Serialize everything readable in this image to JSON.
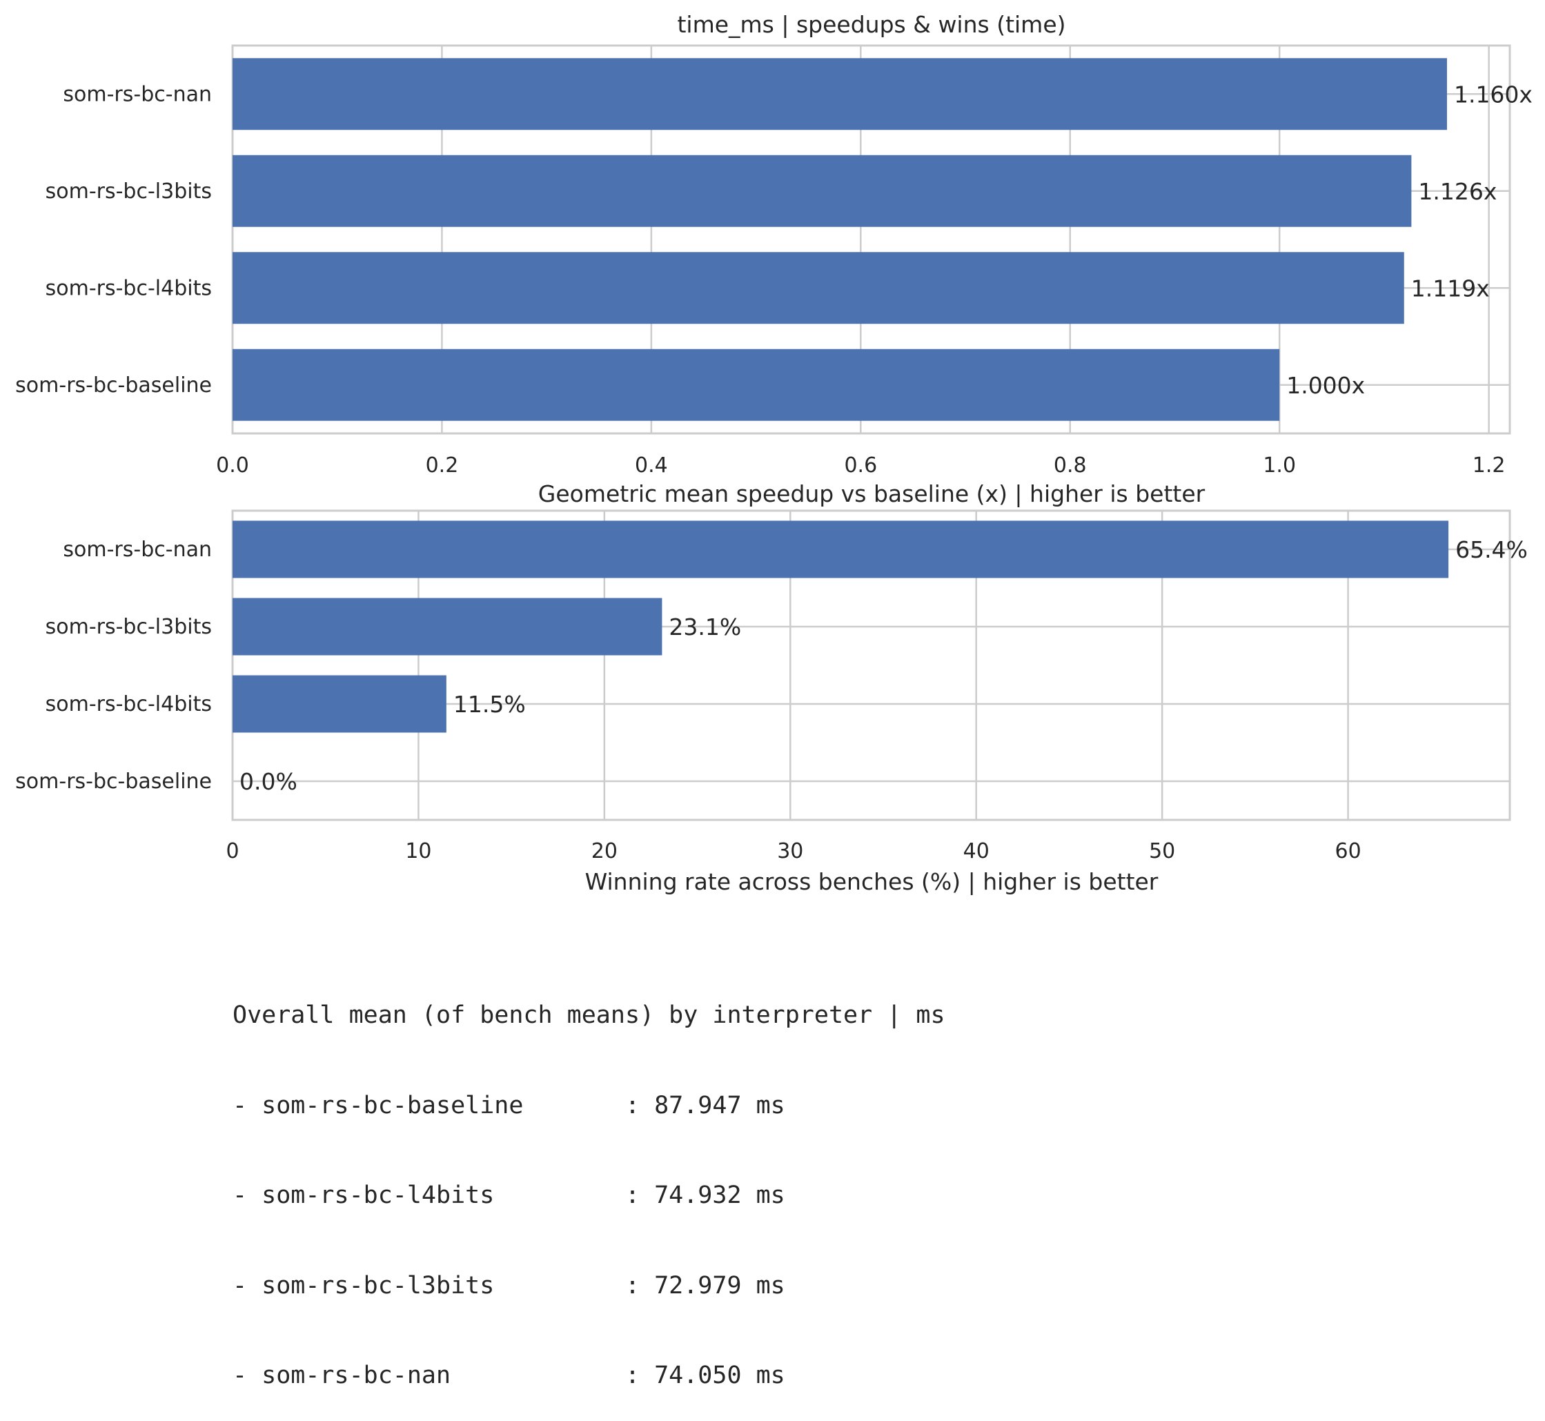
{
  "chart_data": [
    {
      "type": "bar",
      "orientation": "horizontal",
      "title": "time_ms | speedups & wins (time)",
      "xlabel": "Geometric mean speedup vs baseline (x) | higher is better",
      "categories": [
        "som-rs-bc-nan",
        "som-rs-bc-l3bits",
        "som-rs-bc-l4bits",
        "som-rs-bc-baseline"
      ],
      "values": [
        1.16,
        1.126,
        1.119,
        1.0
      ],
      "data_labels": [
        "1.160x",
        "1.126x",
        "1.119x",
        "1.000x"
      ],
      "xlim": [
        0,
        1.22
      ],
      "xticks": [
        0.0,
        0.2,
        0.4,
        0.6,
        0.8,
        1.0,
        1.2
      ],
      "xtick_labels": [
        "0.0",
        "0.2",
        "0.4",
        "0.6",
        "0.8",
        "1.0",
        "1.2"
      ],
      "grid": true,
      "bar_color": "#4c72b0"
    },
    {
      "type": "bar",
      "orientation": "horizontal",
      "title": "",
      "xlabel": "Winning rate across benches (%) | higher is better",
      "categories": [
        "som-rs-bc-nan",
        "som-rs-bc-l3bits",
        "som-rs-bc-l4bits",
        "som-rs-bc-baseline"
      ],
      "values": [
        65.4,
        23.1,
        11.5,
        0.0
      ],
      "data_labels": [
        "65.4%",
        "23.1%",
        "11.5%",
        "0.0%"
      ],
      "xlim": [
        0,
        68.7
      ],
      "xticks": [
        0,
        10,
        20,
        30,
        40,
        50,
        60
      ],
      "xtick_labels": [
        "0",
        "10",
        "20",
        "30",
        "40",
        "50",
        "60"
      ],
      "grid": true,
      "bar_color": "#4c72b0"
    }
  ],
  "summary": {
    "lines": [
      "Overall mean (of bench means) by interpreter | ms",
      "- som-rs-bc-baseline       : 87.947 ms",
      "- som-rs-bc-l4bits         : 74.932 ms",
      "- som-rs-bc-l3bits         : 72.979 ms",
      "- som-rs-bc-nan            : 74.050 ms"
    ]
  },
  "colors": {
    "bar": "#4c72b0",
    "grid": "#cccccc",
    "text": "#262626"
  }
}
